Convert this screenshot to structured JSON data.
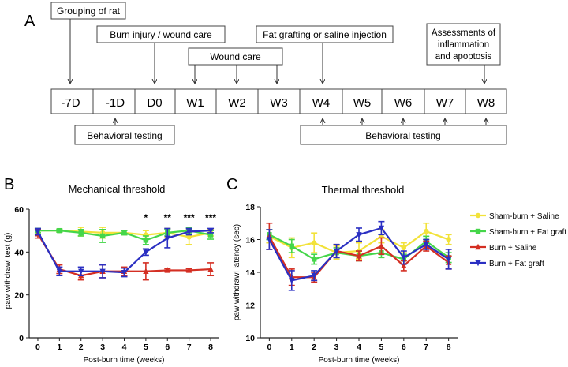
{
  "panel_labels": {
    "a": "A",
    "b": "B",
    "c": "C"
  },
  "timeline": {
    "cells": [
      "-7D",
      "-1D",
      "D0",
      "W1",
      "W2",
      "W3",
      "W4",
      "W5",
      "W6",
      "W7",
      "W8"
    ],
    "events": {
      "grouping": "Grouping of rat",
      "burn": "Burn injury / wound care",
      "wound": "Wound care",
      "fat": "Fat grafting or saline injection",
      "assess": [
        "Assessments of",
        "inflammation",
        "and apoptosis"
      ]
    },
    "behavioral_label": "Behavioral testing"
  },
  "legend": [
    "Sham-burn + Saline",
    "Sham-burn + Fat graft",
    "Burn + Saline",
    "Burn + Fat graft"
  ],
  "colors": {
    "sham_saline": "#f2e23a",
    "sham_fat": "#45d64a",
    "burn_saline": "#d42f23",
    "burn_fat": "#2a2fc2"
  },
  "chart_data": [
    {
      "type": "line",
      "title": "Mechanical threshold",
      "xlabel": "Post-burn time (weeks)",
      "ylabel": "paw withdrawl test (g)",
      "x": [
        0,
        1,
        2,
        3,
        4,
        5,
        6,
        7,
        8
      ],
      "xlim": [
        -0.4,
        8.4
      ],
      "ylim": [
        0,
        60
      ],
      "yticks": [
        0,
        20,
        40,
        60
      ],
      "significance": [
        {
          "x": 5,
          "label": "*"
        },
        {
          "x": 6,
          "label": "**"
        },
        {
          "x": 7,
          "label": "***"
        },
        {
          "x": 8,
          "label": "***"
        }
      ],
      "series": [
        {
          "name": "Sham-burn + Saline",
          "values": [
            50,
            50,
            49.5,
            49,
            49,
            48,
            49,
            47,
            49
          ],
          "errors": [
            1,
            0.7,
            2,
            2.5,
            1,
            2,
            2,
            3.5,
            1.5
          ]
        },
        {
          "name": "Sham-burn + Fat graft",
          "values": [
            50,
            50,
            49,
            47.5,
            49,
            45.5,
            49,
            50,
            48
          ],
          "errors": [
            1,
            0.7,
            1.5,
            3,
            1,
            2,
            1.5,
            1.5,
            2
          ]
        },
        {
          "name": "Burn + Saline",
          "values": [
            48.5,
            32,
            29,
            31,
            31,
            31,
            31.5,
            31.5,
            32
          ],
          "errors": [
            2,
            2,
            2,
            3,
            2,
            4,
            0.7,
            0.7,
            3
          ]
        },
        {
          "name": "Burn + Fat graft",
          "values": [
            49.5,
            31,
            31,
            31,
            30.5,
            40,
            46.5,
            49.5,
            50
          ],
          "errors": [
            1.5,
            2,
            2,
            3,
            2,
            1.5,
            4.5,
            1.5,
            1
          ]
        }
      ]
    },
    {
      "type": "line",
      "title": "Thermal threshold",
      "xlabel": "Post-burn time (weeks)",
      "ylabel": "paw withdrawl latency (sec)",
      "x": [
        0,
        1,
        2,
        3,
        4,
        5,
        6,
        7,
        8
      ],
      "xlim": [
        -0.4,
        8.4
      ],
      "ylim": [
        10,
        18
      ],
      "yticks": [
        10,
        12,
        14,
        16,
        18
      ],
      "series": [
        {
          "name": "Sham-burn + Saline",
          "values": [
            16.2,
            15.5,
            15.8,
            15.2,
            15.3,
            16.2,
            15.5,
            16.5,
            16.0
          ],
          "errors": [
            0.4,
            0.6,
            0.6,
            0.4,
            0.5,
            0.4,
            0.3,
            0.5,
            0.3
          ]
        },
        {
          "name": "Sham-burn + Fat graft",
          "values": [
            16.3,
            15.6,
            14.8,
            15.2,
            15.0,
            15.2,
            14.8,
            15.9,
            14.9
          ],
          "errors": [
            0.3,
            0.4,
            0.3,
            0.3,
            0.3,
            0.3,
            0.3,
            0.3,
            0.3
          ]
        },
        {
          "name": "Burn + Saline",
          "values": [
            16.2,
            13.7,
            13.7,
            15.3,
            15.0,
            15.6,
            14.4,
            15.6,
            14.6
          ],
          "errors": [
            0.8,
            0.5,
            0.3,
            0.4,
            0.3,
            0.5,
            0.3,
            0.3,
            0.4
          ]
        },
        {
          "name": "Burn + Fat graft",
          "values": [
            16.0,
            13.5,
            13.8,
            15.3,
            16.3,
            16.7,
            14.9,
            15.7,
            14.8
          ],
          "errors": [
            0.6,
            0.6,
            0.3,
            0.4,
            0.4,
            0.4,
            0.4,
            0.3,
            0.6
          ]
        }
      ]
    }
  ]
}
